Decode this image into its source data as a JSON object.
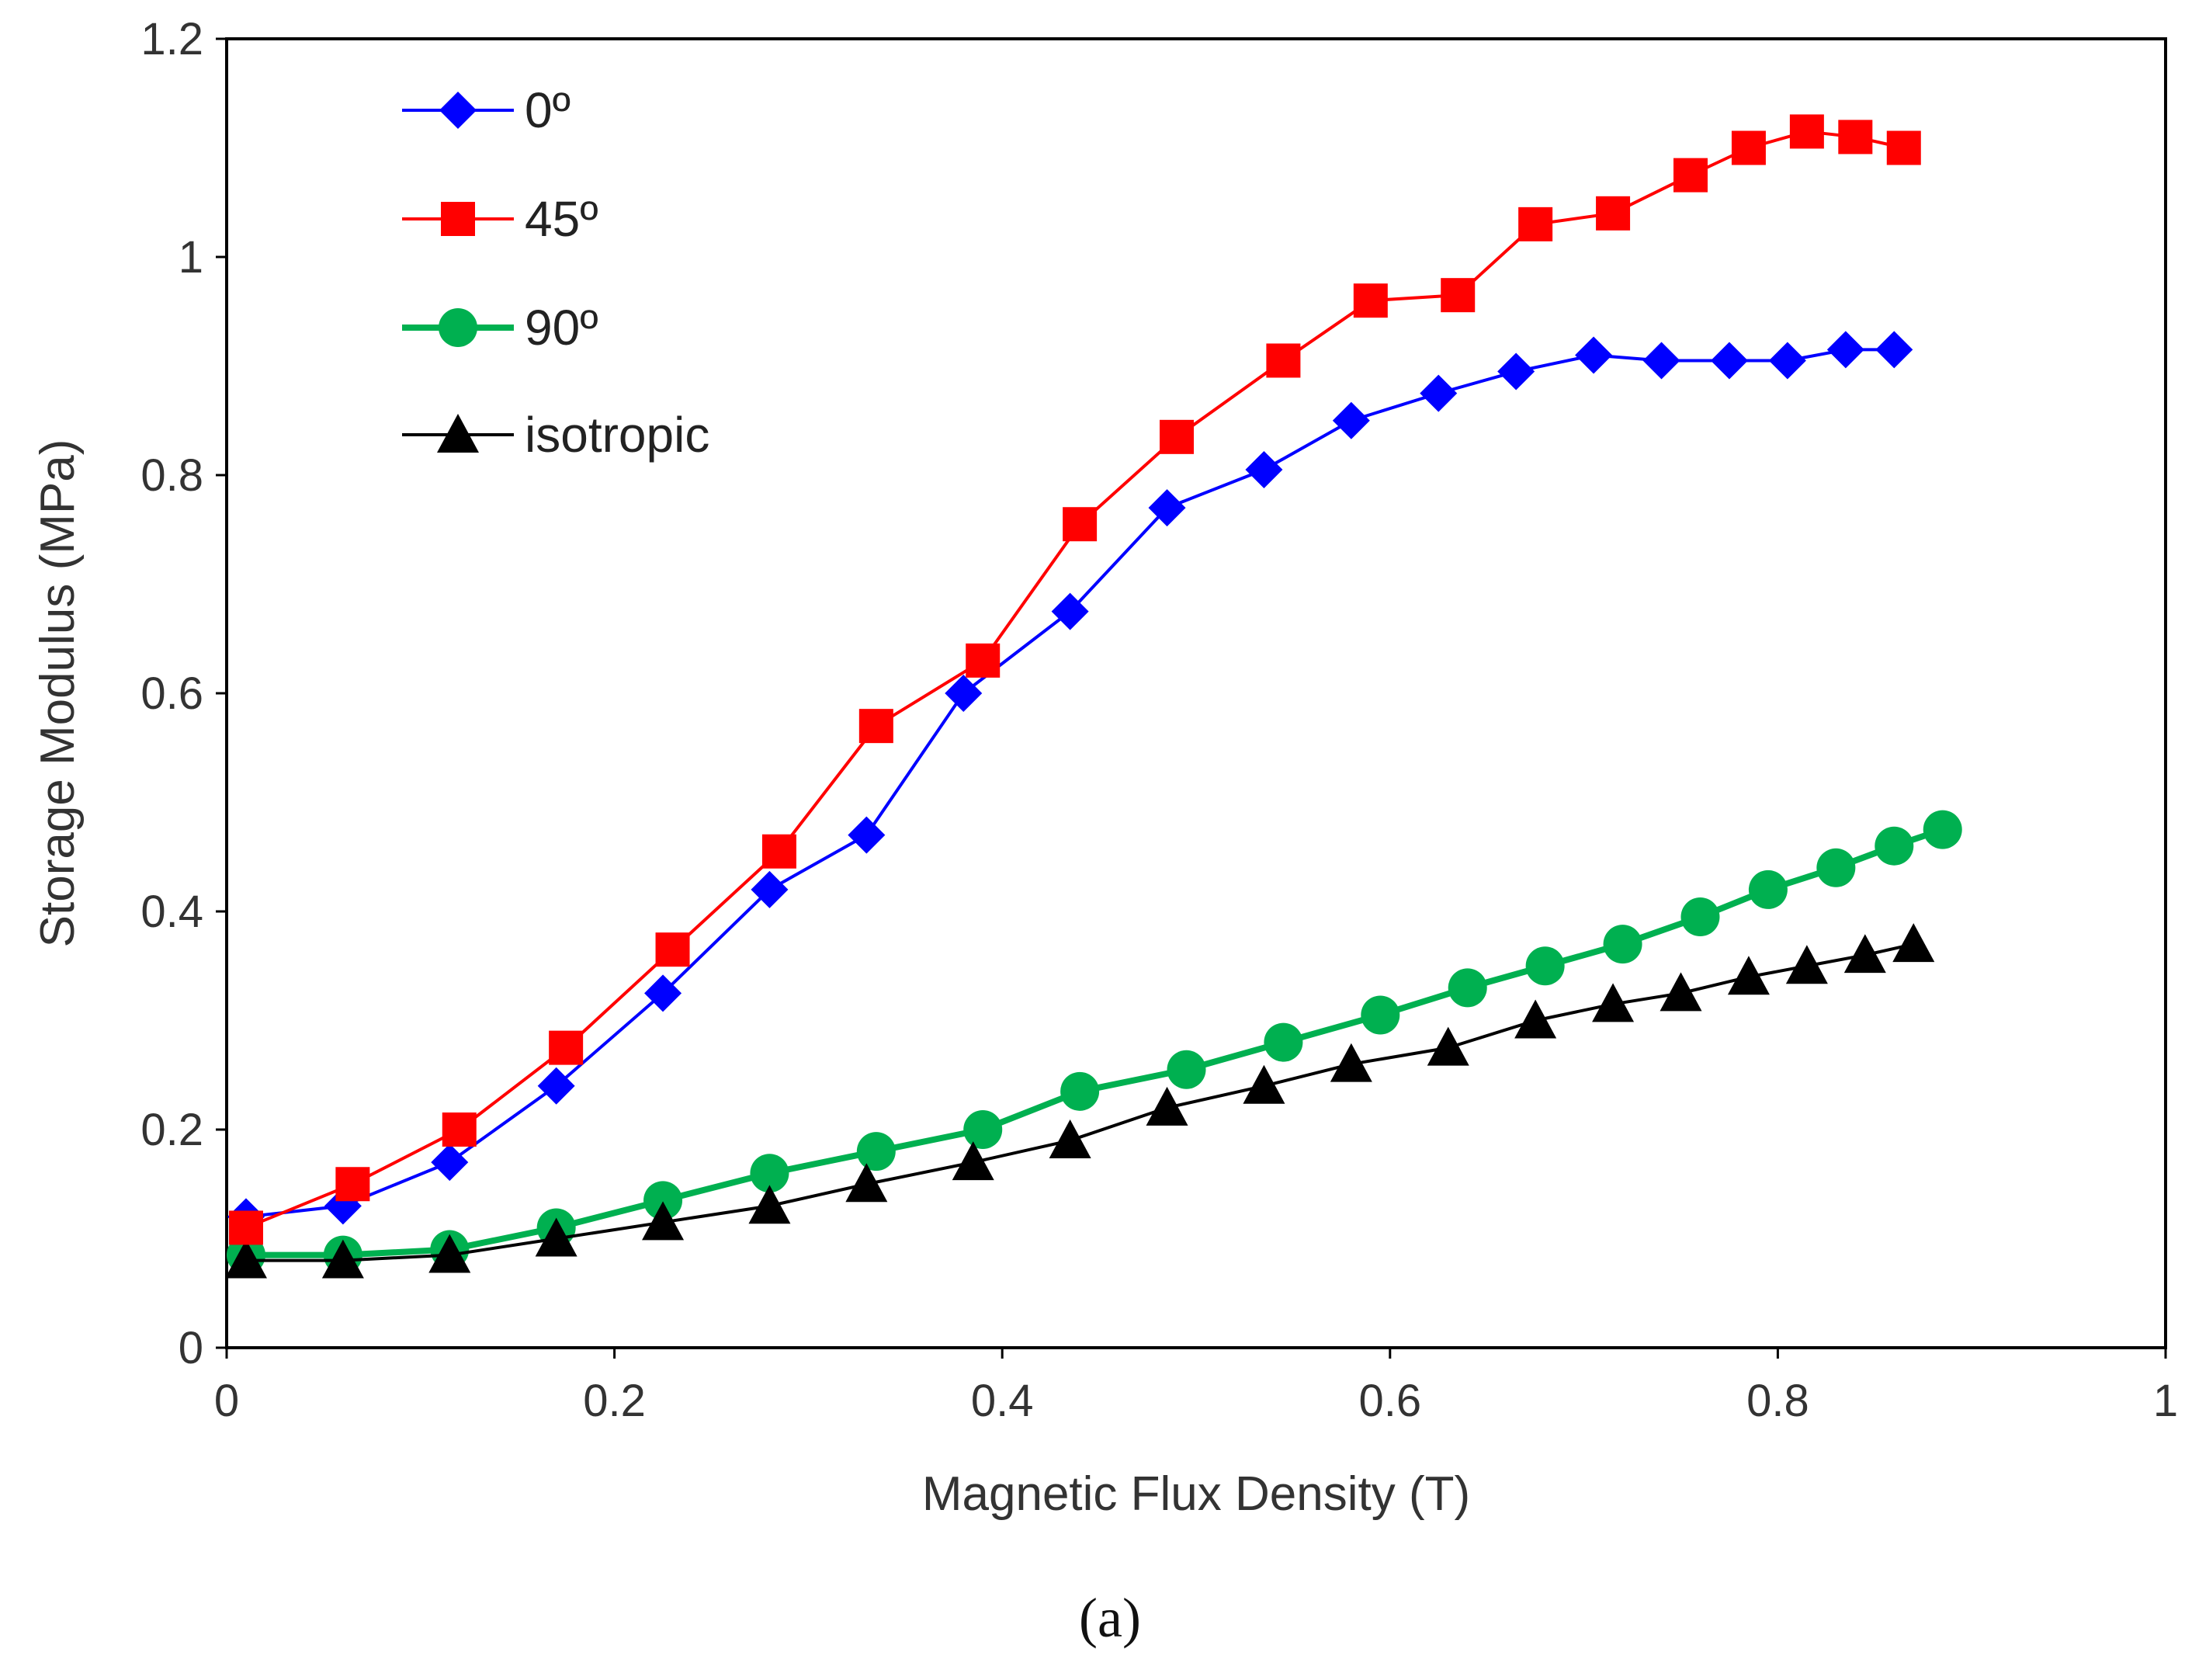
{
  "chart_data": {
    "type": "line",
    "title": "",
    "xlabel": "Magnetic Flux Density (T)",
    "ylabel": "Storage Modulus (MPa)",
    "xlim": [
      0,
      1
    ],
    "ylim": [
      0,
      1.2
    ],
    "xticks": [
      "0",
      "0.2",
      "0.4",
      "0.6",
      "0.8",
      "1"
    ],
    "yticks": [
      "0",
      "0.2",
      "0.4",
      "0.6",
      "0.8",
      "1",
      "1.2"
    ],
    "grid": false,
    "legend_position": "top-left",
    "caption": "(a)",
    "series": [
      {
        "name": "0º",
        "color": "#0000ff",
        "marker": "diamond",
        "x": [
          0.01,
          0.06,
          0.115,
          0.17,
          0.225,
          0.28,
          0.33,
          0.38,
          0.435,
          0.485,
          0.535,
          0.58,
          0.625,
          0.665,
          0.705,
          0.74,
          0.775,
          0.805,
          0.835,
          0.86
        ],
        "y": [
          0.12,
          0.13,
          0.17,
          0.24,
          0.325,
          0.42,
          0.47,
          0.6,
          0.675,
          0.77,
          0.805,
          0.85,
          0.875,
          0.895,
          0.91,
          0.905,
          0.905,
          0.905,
          0.915,
          0.915
        ]
      },
      {
        "name": "45º",
        "color": "#ff0000",
        "marker": "square",
        "x": [
          0.01,
          0.065,
          0.12,
          0.175,
          0.23,
          0.285,
          0.335,
          0.39,
          0.44,
          0.49,
          0.545,
          0.59,
          0.635,
          0.675,
          0.715,
          0.755,
          0.785,
          0.815,
          0.84,
          0.865
        ],
        "y": [
          0.11,
          0.15,
          0.2,
          0.275,
          0.365,
          0.455,
          0.57,
          0.63,
          0.755,
          0.835,
          0.905,
          0.96,
          0.965,
          1.03,
          1.04,
          1.075,
          1.1,
          1.115,
          1.11,
          1.1
        ]
      },
      {
        "name": "90º",
        "color": "#00b050",
        "marker": "circle",
        "x": [
          0.01,
          0.06,
          0.115,
          0.17,
          0.225,
          0.28,
          0.335,
          0.39,
          0.44,
          0.495,
          0.545,
          0.595,
          0.64,
          0.68,
          0.72,
          0.76,
          0.795,
          0.83,
          0.86,
          0.885
        ],
        "y": [
          0.085,
          0.085,
          0.09,
          0.11,
          0.135,
          0.16,
          0.18,
          0.2,
          0.235,
          0.255,
          0.28,
          0.305,
          0.33,
          0.35,
          0.37,
          0.395,
          0.42,
          0.44,
          0.46,
          0.475
        ]
      },
      {
        "name": "isotropic",
        "color": "#000000",
        "marker": "triangle",
        "x": [
          0.01,
          0.06,
          0.115,
          0.17,
          0.225,
          0.28,
          0.33,
          0.385,
          0.435,
          0.485,
          0.535,
          0.58,
          0.63,
          0.675,
          0.715,
          0.75,
          0.785,
          0.815,
          0.845,
          0.87
        ],
        "y": [
          0.08,
          0.08,
          0.085,
          0.1,
          0.115,
          0.13,
          0.15,
          0.17,
          0.19,
          0.22,
          0.24,
          0.26,
          0.275,
          0.3,
          0.315,
          0.325,
          0.34,
          0.35,
          0.36,
          0.37
        ]
      }
    ]
  }
}
